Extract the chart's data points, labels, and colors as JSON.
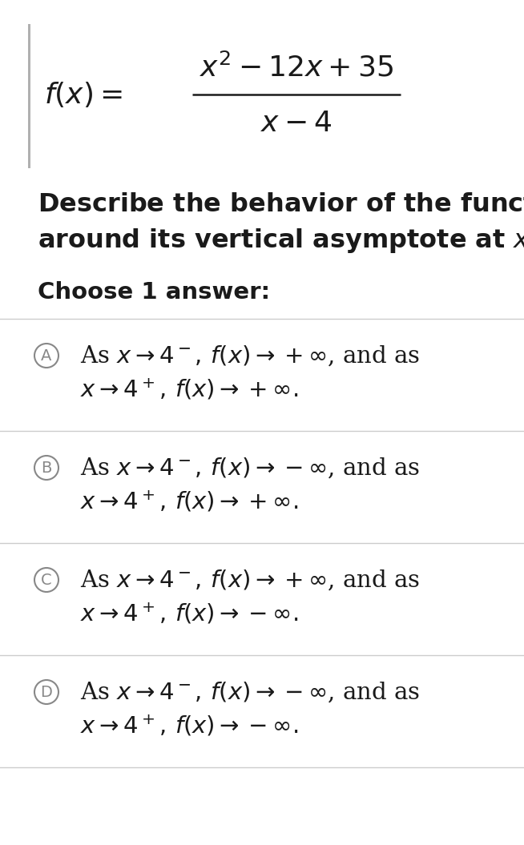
{
  "bg_color": "#ffffff",
  "left_bar_color": "#b0b0b0",
  "divider_color": "#cccccc",
  "circle_color": "#888888",
  "text_color": "#1a1a1a",
  "formula_fontsize": 26,
  "question_fontsize": 23,
  "choose_fontsize": 21,
  "option_fontsize": 21,
  "circle_linewidth": 1.5,
  "fig_width": 6.54,
  "fig_height": 10.55,
  "dpi": 100,
  "option_data": [
    {
      "label": "A",
      "line1": "As $x \\to 4^-,\\, f(x) \\to +\\infty$, and as",
      "line2": "$x \\to 4^+,\\, f(x) \\to +\\infty.$"
    },
    {
      "label": "B",
      "line1": "As $x \\to 4^-,\\, f(x) \\to -\\infty$, and as",
      "line2": "$x \\to 4^+,\\, f(x) \\to +\\infty.$"
    },
    {
      "label": "C",
      "line1": "As $x \\to 4^-,\\, f(x) \\to +\\infty$, and as",
      "line2": "$x \\to 4^+,\\, f(x) \\to -\\infty.$"
    },
    {
      "label": "D",
      "line1": "As $x \\to 4^-,\\, f(x) \\to -\\infty$, and as",
      "line2": "$x \\to 4^+,\\, f(x) \\to -\\infty.$"
    }
  ]
}
